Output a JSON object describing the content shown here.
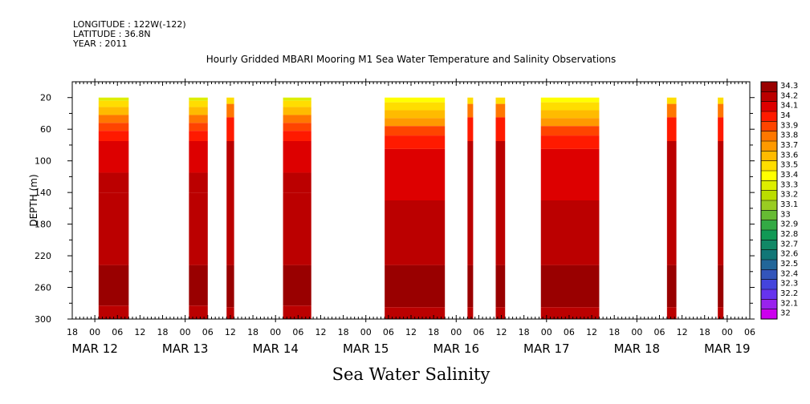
{
  "header": {
    "longitude": "LONGITUDE : 122W(-122)",
    "latitude": "LATITUDE : 36.8N",
    "year": "YEAR : 2011"
  },
  "chart_data": {
    "type": "heatmap",
    "title": "Hourly Gridded MBARI Mooring M1 Sea Water Temperature and Salinity Observations",
    "xlabel": "Sea Water Salinity",
    "ylabel": "DEPTH (m)",
    "y_inverted": true,
    "ylim": [
      0,
      300
    ],
    "y_ticks": [
      20,
      60,
      100,
      140,
      180,
      220,
      260,
      300
    ],
    "xlim_hours": [
      0,
      180
    ],
    "x_ticks": [
      {
        "h": 0,
        "label": "18"
      },
      {
        "h": 6,
        "label": "00"
      },
      {
        "h": 12,
        "label": "06"
      },
      {
        "h": 18,
        "label": "12"
      },
      {
        "h": 24,
        "label": "18"
      },
      {
        "h": 30,
        "label": "00"
      },
      {
        "h": 36,
        "label": "06"
      },
      {
        "h": 42,
        "label": "12"
      },
      {
        "h": 48,
        "label": "18"
      },
      {
        "h": 54,
        "label": "00"
      },
      {
        "h": 60,
        "label": "06"
      },
      {
        "h": 66,
        "label": "12"
      },
      {
        "h": 72,
        "label": "18"
      },
      {
        "h": 78,
        "label": "00"
      },
      {
        "h": 84,
        "label": "06"
      },
      {
        "h": 90,
        "label": "12"
      },
      {
        "h": 96,
        "label": "18"
      },
      {
        "h": 102,
        "label": "00"
      },
      {
        "h": 108,
        "label": "06"
      },
      {
        "h": 114,
        "label": "12"
      },
      {
        "h": 120,
        "label": "18"
      },
      {
        "h": 126,
        "label": "00"
      },
      {
        "h": 132,
        "label": "06"
      },
      {
        "h": 138,
        "label": "12"
      },
      {
        "h": 144,
        "label": "18"
      },
      {
        "h": 150,
        "label": "00"
      },
      {
        "h": 156,
        "label": "06"
      },
      {
        "h": 162,
        "label": "12"
      },
      {
        "h": 168,
        "label": "18"
      },
      {
        "h": 174,
        "label": "00"
      },
      {
        "h": 180,
        "label": "06"
      }
    ],
    "date_labels": [
      {
        "h": 6,
        "label": "MAR 12"
      },
      {
        "h": 30,
        "label": "MAR 13"
      },
      {
        "h": 54,
        "label": "MAR 14"
      },
      {
        "h": 78,
        "label": "MAR 15"
      },
      {
        "h": 102,
        "label": "MAR 16"
      },
      {
        "h": 126,
        "label": "MAR 17"
      },
      {
        "h": 150,
        "label": "MAR 18"
      },
      {
        "h": 174,
        "label": "MAR 19"
      }
    ],
    "data_blocks": [
      {
        "start": 7,
        "end": 15,
        "profile": "a"
      },
      {
        "start": 31,
        "end": 36,
        "profile": "a"
      },
      {
        "start": 41,
        "end": 43,
        "profile": "b"
      },
      {
        "start": 56,
        "end": 63.5,
        "profile": "a"
      },
      {
        "start": 83,
        "end": 99,
        "profile": "c"
      },
      {
        "start": 105,
        "end": 106.5,
        "profile": "b"
      },
      {
        "start": 112.5,
        "end": 115,
        "profile": "b"
      },
      {
        "start": 124.5,
        "end": 140,
        "profile": "c"
      },
      {
        "start": 158,
        "end": 160.5,
        "profile": "b"
      },
      {
        "start": 171.5,
        "end": 173,
        "profile": "b"
      }
    ],
    "profiles": {
      "a": [
        {
          "top": 20,
          "bottom": 24,
          "value": 33.3
        },
        {
          "top": 24,
          "bottom": 32,
          "value": 33.5
        },
        {
          "top": 32,
          "bottom": 42,
          "value": 33.6
        },
        {
          "top": 42,
          "bottom": 52,
          "value": 33.8
        },
        {
          "top": 52,
          "bottom": 62,
          "value": 33.9
        },
        {
          "top": 62,
          "bottom": 75,
          "value": 34.0
        },
        {
          "top": 75,
          "bottom": 115,
          "value": 34.1
        },
        {
          "top": 115,
          "bottom": 140,
          "value": 34.2
        },
        {
          "top": 140,
          "bottom": 232,
          "value": 34.2
        },
        {
          "top": 232,
          "bottom": 283,
          "value": 34.3
        },
        {
          "top": 283,
          "bottom": 300,
          "value": 34.2
        }
      ],
      "b": [
        {
          "top": 20,
          "bottom": 28,
          "value": 33.5
        },
        {
          "top": 28,
          "bottom": 45,
          "value": 33.8
        },
        {
          "top": 45,
          "bottom": 75,
          "value": 34.0
        },
        {
          "top": 75,
          "bottom": 232,
          "value": 34.2
        },
        {
          "top": 232,
          "bottom": 285,
          "value": 34.3
        },
        {
          "top": 285,
          "bottom": 300,
          "value": 34.2
        }
      ],
      "c": [
        {
          "top": 20,
          "bottom": 26,
          "value": 33.4
        },
        {
          "top": 26,
          "bottom": 36,
          "value": 33.5
        },
        {
          "top": 36,
          "bottom": 46,
          "value": 33.6
        },
        {
          "top": 46,
          "bottom": 56,
          "value": 33.7
        },
        {
          "top": 56,
          "bottom": 68,
          "value": 33.9
        },
        {
          "top": 68,
          "bottom": 85,
          "value": 34.0
        },
        {
          "top": 85,
          "bottom": 150,
          "value": 34.1
        },
        {
          "top": 150,
          "bottom": 232,
          "value": 34.2
        },
        {
          "top": 232,
          "bottom": 285,
          "value": 34.3
        },
        {
          "top": 285,
          "bottom": 300,
          "value": 34.2
        }
      ]
    },
    "colorbar": [
      {
        "label": "34.3",
        "color": "#990000"
      },
      {
        "label": "34.2",
        "color": "#bb0000"
      },
      {
        "label": "34.1",
        "color": "#dd0000"
      },
      {
        "label": "34",
        "color": "#ff1a00"
      },
      {
        "label": "33.9",
        "color": "#ff4400"
      },
      {
        "label": "33.8",
        "color": "#ff7700"
      },
      {
        "label": "33.7",
        "color": "#ff9900"
      },
      {
        "label": "33.6",
        "color": "#ffbb00"
      },
      {
        "label": "33.5",
        "color": "#ffdd00"
      },
      {
        "label": "33.4",
        "color": "#ffff00"
      },
      {
        "label": "33.3",
        "color": "#ddee00"
      },
      {
        "label": "33.2",
        "color": "#bbdd00"
      },
      {
        "label": "33.1",
        "color": "#99cc22"
      },
      {
        "label": "33",
        "color": "#66bb33"
      },
      {
        "label": "32.9",
        "color": "#33aa44"
      },
      {
        "label": "32.8",
        "color": "#119955"
      },
      {
        "label": "32.7",
        "color": "#118866"
      },
      {
        "label": "32.6",
        "color": "#117777"
      },
      {
        "label": "32.5",
        "color": "#226699"
      },
      {
        "label": "32.4",
        "color": "#3355bb"
      },
      {
        "label": "32.3",
        "color": "#4444dd"
      },
      {
        "label": "32.2",
        "color": "#6633ee"
      },
      {
        "label": "32.1",
        "color": "#9922ee"
      },
      {
        "label": "32",
        "color": "#cc00ee"
      }
    ]
  }
}
